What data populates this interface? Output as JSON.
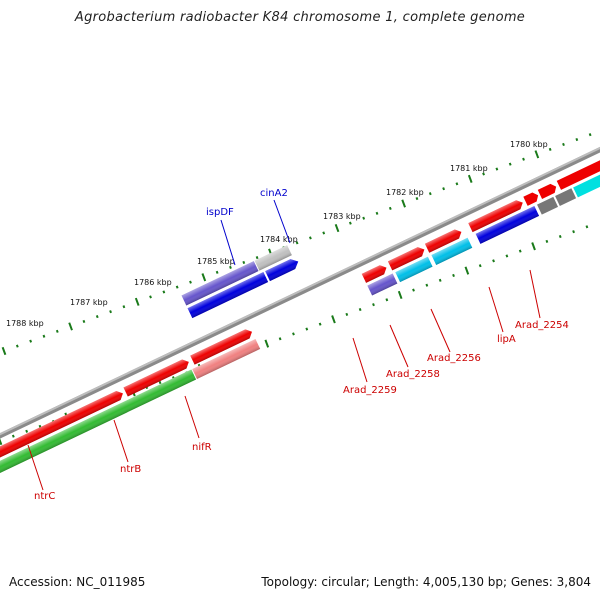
{
  "title": "Agrobacterium radiobacter K84 chromosome 1, complete genome",
  "footer": {
    "accession": "Accession: NC_011985",
    "summary": "Topology: circular; Length: 4,005,130 bp; Genes: 3,804"
  },
  "colors": {
    "backbone": "#8a8a8a",
    "tick": "#1a7a1a",
    "forward_cds": "#ee0000",
    "reverse_cds": "#0000dd",
    "cyan_cds": "#00bfe8",
    "green_cds": "#33bb33",
    "purple_cds": "#6655cc",
    "pink_cds": "#f08080",
    "gray_cds": "#777777",
    "light_gray_cds": "#c0c0c0",
    "blue_label": "#0000cc",
    "red_label": "#cc0000"
  },
  "kbp_labels": [
    "1780 kbp",
    "1781 kbp",
    "1782 kbp",
    "1783 kbp",
    "1784 kbp",
    "1785 kbp",
    "1786 kbp",
    "1787 kbp",
    "1788 kbp"
  ],
  "gene_labels": {
    "ispDF": "ispDF",
    "cinA2": "cinA2",
    "ntrC": "ntrC",
    "ntrB": "ntrB",
    "nifR": "nifR",
    "arad2259": "Arad_2259",
    "arad2258": "Arad_2258",
    "arad2256": "Arad_2256",
    "lipA": "lipA",
    "arad2254": "Arad_2254"
  }
}
